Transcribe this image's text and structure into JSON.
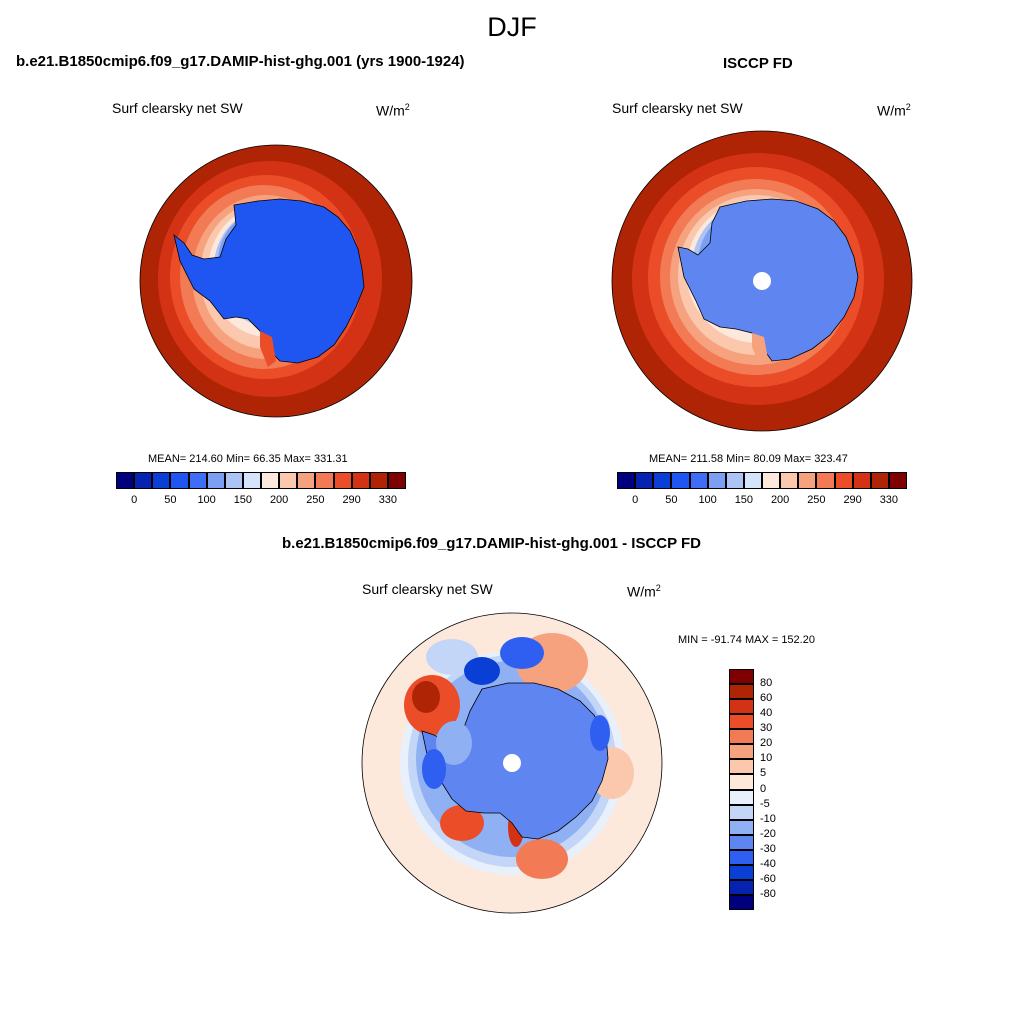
{
  "page": {
    "title": "DJF"
  },
  "panels": [
    {
      "title": "b.e21.B1850cmip6.f09_g17.DAMIP-hist-ghg.001 (yrs 1900-1924)",
      "variable": "Surf clearsky net SW",
      "units_base": "W/m",
      "units_exp": "2",
      "stats": "MEAN= 214.60  Min=  66.35  Max= 331.31",
      "colorbar_ticks": [
        "0",
        "50",
        "100",
        "150",
        "200",
        "250",
        "290",
        "330"
      ]
    },
    {
      "title": "ISCCP FD",
      "variable": "Surf clearsky net SW",
      "units_base": "W/m",
      "units_exp": "2",
      "stats": "MEAN= 211.58  Min=  80.09  Max= 323.47",
      "colorbar_ticks": [
        "0",
        "50",
        "100",
        "150",
        "200",
        "250",
        "290",
        "330"
      ]
    },
    {
      "title": "b.e21.B1850cmip6.f09_g17.DAMIP-hist-ghg.001 - ISCCP FD",
      "variable": "Surf clearsky net SW",
      "units_base": "W/m",
      "units_exp": "2",
      "stats": "MIN = -91.74 MAX = 152.20",
      "colorbar_ticks": [
        "80",
        "60",
        "40",
        "30",
        "20",
        "10",
        "5",
        "0",
        "-5",
        "-10",
        "-20",
        "-30",
        "-40",
        "-60",
        "-80"
      ]
    }
  ],
  "colors": {
    "abs_scale": [
      "#00007f",
      "#0522b0",
      "#0a3fd6",
      "#1f55f0",
      "#3e6ef5",
      "#7c9ff2",
      "#abc4f5",
      "#d6e4fb",
      "#fde8dc",
      "#fbc8ae",
      "#f7a27f",
      "#f27a55",
      "#ea4d28",
      "#d43214",
      "#b02406",
      "#7f0000"
    ],
    "diff_scale": [
      "#7f0000",
      "#b02406",
      "#d43214",
      "#ea4d28",
      "#f27a55",
      "#f7a27f",
      "#fbc8ae",
      "#fde8dc",
      "#e8f0fb",
      "#c4d6f7",
      "#8fb0f2",
      "#5e85f0",
      "#2e5ff0",
      "#0a3fd6",
      "#0522b0",
      "#00007f"
    ]
  }
}
